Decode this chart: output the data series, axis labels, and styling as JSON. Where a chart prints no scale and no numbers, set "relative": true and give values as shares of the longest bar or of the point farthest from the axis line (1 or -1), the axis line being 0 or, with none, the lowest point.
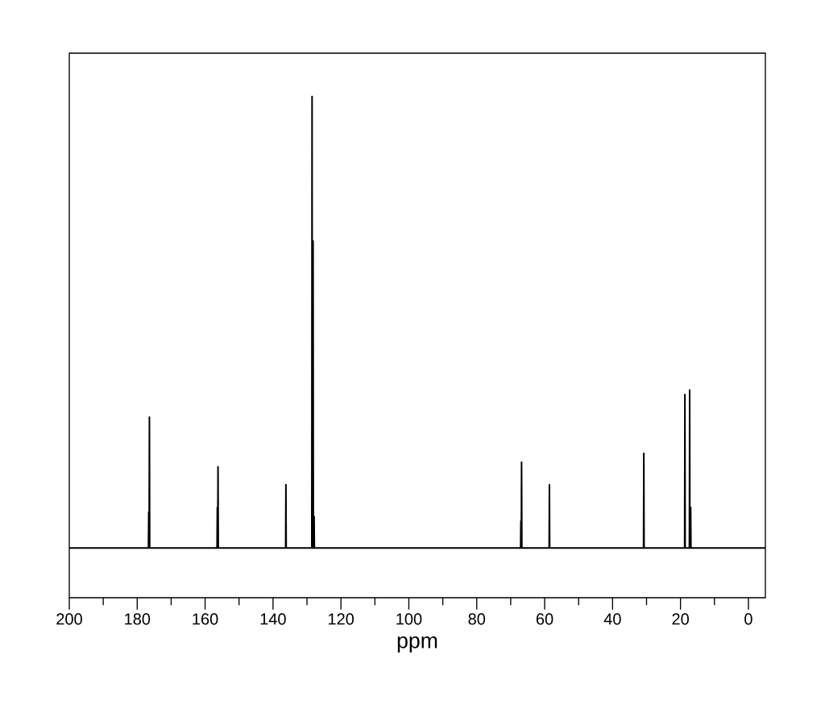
{
  "chart_data": {
    "type": "line",
    "relative": true,
    "xlabel": "ppm",
    "color": "#000000",
    "x": [
      200,
      176.68,
      176.6,
      176.52,
      176.48,
      176.4,
      176.32,
      156.48,
      156.4,
      156.32,
      156.28,
      156.2,
      156.12,
      136.28,
      136.2,
      136.12,
      128.58,
      128.5,
      128.42,
      128.28,
      128.2,
      128.12,
      127.98,
      127.9,
      127.82,
      67.08,
      67.0,
      66.92,
      66.88,
      66.8,
      66.72,
      58.68,
      58.6,
      58.52,
      30.88,
      30.8,
      30.72,
      18.78,
      18.7,
      18.62,
      17.38,
      17.3,
      17.22,
      17.08,
      17.0,
      16.92,
      -5
    ],
    "values": [
      0,
      0,
      0.08,
      0,
      0,
      0.29,
      0,
      0,
      0.09,
      0,
      0,
      0.18,
      0,
      0,
      0.14,
      0,
      0,
      1,
      0,
      0,
      0.68,
      0,
      0,
      0.07,
      0,
      0,
      0.06,
      0,
      0,
      0.19,
      0,
      0,
      0.14,
      0,
      0,
      0.21,
      0,
      0,
      0.34,
      0,
      0,
      0.35,
      0,
      0,
      0.09,
      0,
      0
    ],
    "xlim": [
      200,
      -5
    ],
    "xticks": [
      200,
      180,
      160,
      140,
      120,
      100,
      80,
      60,
      40,
      20,
      0
    ]
  }
}
